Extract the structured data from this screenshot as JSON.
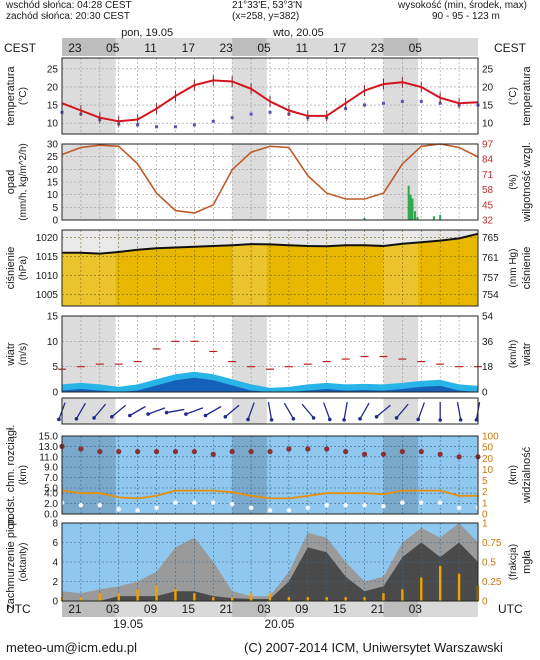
{
  "header": {
    "sunrise": "wschód słońca: 04:28 CEST",
    "sunset": "zachód słońca: 20:30 CEST",
    "coords": "21°33'E, 53°3'N",
    "grid": "(x=258, y=382)",
    "elevation_label": "wysokość (min, środek, max)",
    "elevation_values": "90 - 95 - 123 m"
  },
  "top_axis": {
    "tz_left": "CEST",
    "tz_right": "CEST",
    "day1": "pon, 19.05",
    "day2": "wto, 20.05",
    "hours": [
      "23",
      "05",
      "11",
      "17",
      "23",
      "05",
      "11",
      "17",
      "23",
      "05"
    ]
  },
  "bottom_axis": {
    "tz_left": "UTC",
    "tz_right": "UTC",
    "hours": [
      "21",
      "03",
      "09",
      "15",
      "21",
      "03",
      "09",
      "15",
      "21",
      "03"
    ],
    "date1": "19.05",
    "date2": "20.05"
  },
  "footer": {
    "email": "meteo-um@icm.edu.pl",
    "copyright": "(C) 2007-2014 ICM, Uniwersytet Warszawski"
  },
  "panels": {
    "temperature": {
      "left_label": "temperatura",
      "left_unit": "(°C)",
      "right_label": "temperatura",
      "right_unit": "(°C)"
    },
    "precip": {
      "left_label": "opad",
      "left_unit": "(mm/h, kg/m^2/h)",
      "right_label": "wilgotność wzgl.",
      "right_unit": "(%)"
    },
    "pressure": {
      "left_label": "ciśnienie",
      "left_unit": "(hPa)",
      "right_label": "ciśnienie",
      "right_unit": "(mm Hg)"
    },
    "wind": {
      "left_label": "wiatr",
      "left_unit": "(m/s)",
      "right_label": "wiatr",
      "right_unit": "(km/h)"
    },
    "visibility": {
      "left_label": "podst. chm. rozciągł.",
      "left_unit": "(km)",
      "right_label": "widzialność",
      "right_unit": "(km)"
    },
    "clouds": {
      "left_label": "zachmurzenie pion.",
      "left_unit": "(oktanty)",
      "right_label": "mgła",
      "right_unit": "(frakcja)"
    }
  },
  "chart_data": [
    {
      "type": "line",
      "panel": "temperature",
      "x_unit": "hour from start (UTC 19.05 18:00)",
      "ylim": [
        7,
        28
      ],
      "yticks": [
        10,
        15,
        20,
        25
      ],
      "x": [
        0,
        3,
        6,
        9,
        12,
        15,
        18,
        21,
        24,
        27,
        30,
        33,
        36,
        39,
        42,
        45,
        48,
        51,
        54,
        57,
        60,
        63,
        66
      ],
      "series": [
        {
          "values": [
            15.5,
            13.5,
            11.5,
            10.5,
            11.0,
            14.0,
            17.5,
            20.5,
            21.8,
            21.5,
            19.5,
            16.0,
            13.5,
            12.0,
            12.0,
            15.5,
            19.0,
            20.8,
            21.3,
            20.0,
            17.0,
            15.5,
            15.8
          ]
        },
        {
          "values": [
            13.0,
            12.5,
            11.0,
            9.8,
            9.5,
            9.0,
            9.0,
            9.5,
            10.5,
            11.5,
            12.5,
            13.0,
            12.5,
            11.5,
            11.5,
            14.0,
            15.0,
            15.5,
            16.0,
            16.0,
            15.5,
            15.0,
            15.0
          ]
        }
      ]
    },
    {
      "type": "line",
      "panel": "precip-humidity",
      "left_ylim": [
        0,
        30
      ],
      "left_yticks": [
        0,
        5,
        10,
        15,
        20,
        25,
        30
      ],
      "right_yticks": [
        32,
        45,
        58,
        71,
        84,
        97
      ],
      "x": [
        0,
        3,
        6,
        9,
        12,
        15,
        18,
        21,
        24,
        27,
        30,
        33,
        36,
        39,
        42,
        45,
        48,
        51,
        54,
        57,
        60,
        63,
        66
      ],
      "series": [
        {
          "values": [
            88,
            94,
            96,
            95,
            80,
            55,
            40,
            38,
            45,
            75,
            90,
            95,
            94,
            70,
            55,
            50,
            50,
            55,
            80,
            95,
            97,
            94,
            86
          ]
        }
      ],
      "precip_bars": [
        {
          "x": 55.0,
          "value": 13.5
        },
        {
          "x": 55.3,
          "value": 10.0
        },
        {
          "x": 55.6,
          "value": 8.5
        },
        {
          "x": 56.0,
          "value": 3.5
        },
        {
          "x": 56.4,
          "value": 1.2
        },
        {
          "x": 48.0,
          "value": 0.8
        },
        {
          "x": 59.0,
          "value": 1.5
        },
        {
          "x": 60.0,
          "value": 2.0
        }
      ]
    },
    {
      "type": "area",
      "panel": "pressure",
      "left_ylim": [
        1002,
        1022
      ],
      "left_yticks": [
        1005,
        1010,
        1015,
        1020
      ],
      "right_yticks": [
        754,
        757,
        761,
        765
      ],
      "x": [
        0,
        3,
        6,
        9,
        12,
        15,
        18,
        21,
        24,
        27,
        30,
        33,
        36,
        39,
        42,
        45,
        48,
        51,
        54,
        57,
        60,
        63,
        66
      ],
      "series": [
        {
          "values": [
            1016.0,
            1016.0,
            1015.8,
            1016.2,
            1016.8,
            1017.2,
            1017.4,
            1017.6,
            1017.8,
            1018.0,
            1018.3,
            1018.2,
            1018.0,
            1017.8,
            1017.7,
            1018.0,
            1018.0,
            1017.8,
            1018.4,
            1018.8,
            1019.2,
            1019.8,
            1021.0
          ]
        }
      ]
    },
    {
      "type": "area",
      "panel": "wind",
      "left_ylim": [
        0,
        15
      ],
      "left_yticks": [
        0,
        5,
        10,
        15
      ],
      "right_yticks": [
        0,
        18,
        36,
        54
      ],
      "x": [
        0,
        3,
        6,
        9,
        12,
        15,
        18,
        21,
        24,
        27,
        30,
        33,
        36,
        39,
        42,
        45,
        48,
        51,
        54,
        57,
        60,
        63,
        66
      ],
      "series": [
        {
          "values": [
            1.5,
            1.8,
            1.5,
            1.0,
            1.5,
            2.5,
            3.5,
            4.0,
            3.5,
            2.5,
            1.5,
            0.8,
            1.0,
            1.5,
            1.8,
            1.5,
            1.6,
            1.5,
            1.8,
            2.2,
            2.4,
            1.5,
            1.2
          ]
        },
        {
          "values": [
            4.5,
            5.0,
            5.5,
            5.5,
            6.0,
            8.5,
            10.0,
            10.0,
            8.0,
            6.0,
            5.0,
            4.5,
            5.0,
            5.5,
            6.0,
            6.5,
            7.0,
            7.0,
            6.5,
            6.0,
            5.5,
            5.0,
            5.0
          ]
        }
      ]
    },
    {
      "type": "scatter",
      "panel": "visibility-cloudbase",
      "left_ylim": [
        0,
        15
      ],
      "left_yticks": [
        0.0,
        2.0,
        4.0,
        5.0,
        7.0,
        9.0,
        11.0,
        13.0,
        15.0
      ],
      "right_yticks": [
        0,
        1,
        2,
        5,
        10,
        20,
        50,
        100
      ],
      "x": [
        0,
        3,
        6,
        9,
        12,
        15,
        18,
        21,
        24,
        27,
        30,
        33,
        36,
        39,
        42,
        45,
        48,
        51,
        54,
        57,
        60,
        63,
        66
      ],
      "series": [
        {
          "values": [
            4.5,
            4.0,
            4.0,
            3.2,
            3.0,
            3.5,
            4.5,
            4.5,
            4.5,
            4.2,
            3.5,
            3.0,
            3.0,
            3.5,
            4.0,
            4.0,
            4.0,
            3.8,
            4.5,
            4.5,
            4.5,
            3.5,
            3.5
          ]
        },
        {
          "values": [
            13.0,
            12.5,
            12.0,
            12.0,
            12.0,
            12.0,
            12.0,
            12.0,
            11.5,
            12.0,
            12.0,
            12.0,
            12.5,
            12.5,
            12.5,
            12.0,
            11.5,
            11.5,
            12.0,
            12.0,
            11.5,
            11.0,
            11.0
          ]
        }
      ]
    },
    {
      "type": "area",
      "panel": "cloud-cover",
      "left_ylim": [
        0,
        8
      ],
      "left_yticks": [
        0,
        2,
        4,
        6,
        8
      ],
      "right_yticks": [
        0,
        0.25,
        0.5,
        0.75,
        1
      ],
      "x": [
        0,
        3,
        6,
        9,
        12,
        15,
        18,
        21,
        24,
        27,
        30,
        33,
        36,
        39,
        42,
        45,
        48,
        51,
        54,
        57,
        60,
        63,
        66
      ],
      "series": [
        {
          "values": [
            1.0,
            0.8,
            1.2,
            1.5,
            2.0,
            3.0,
            5.5,
            6.5,
            4.0,
            1.0,
            0.5,
            0.5,
            3.0,
            7.0,
            6.5,
            4.0,
            2.0,
            2.5,
            6.0,
            7.5,
            6.5,
            8.0,
            6.0
          ]
        },
        {
          "values": [
            0.0,
            0.0,
            0.0,
            0.5,
            0.5,
            0.5,
            1.0,
            1.0,
            0.5,
            0.3,
            0.2,
            0.2,
            2.0,
            5.5,
            5.0,
            2.5,
            1.0,
            1.5,
            4.5,
            6.0,
            4.5,
            6.0,
            4.0
          ]
        },
        {
          "values": [
            0.05,
            0.05,
            0.1,
            0.1,
            0.15,
            0.2,
            0.15,
            0.1,
            0.05,
            0.05,
            0.1,
            0.1,
            0.05,
            0.05,
            0.05,
            0.05,
            0.05,
            0.1,
            0.15,
            0.3,
            0.45,
            0.35,
            0.2
          ]
        }
      ]
    }
  ]
}
